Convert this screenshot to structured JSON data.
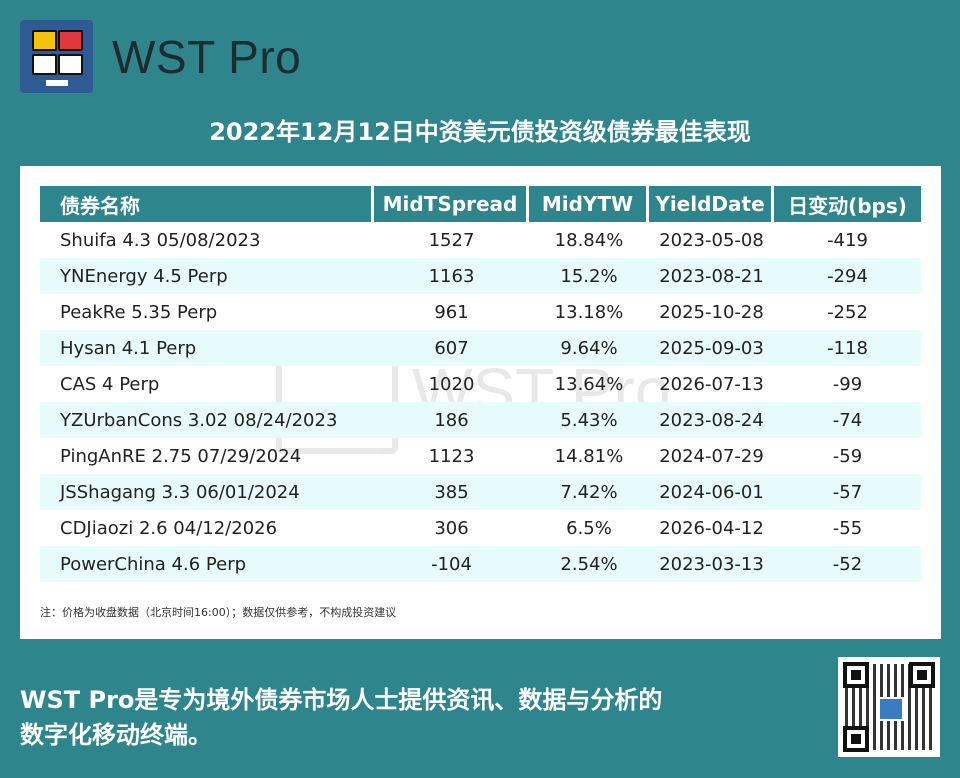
{
  "brand": {
    "name": "WST Pro",
    "logo_colors": [
      "#f4c20d",
      "#e0383e",
      "#ffffff",
      "#ffffff"
    ],
    "watermark": "WST Pro"
  },
  "headline": "2022年12月12日中资美元债投资级债券最佳表现",
  "table": {
    "headers": [
      "债券名称",
      "MidTSpread",
      "MidYTW",
      "YieldDate",
      "日变动(bps)"
    ],
    "rows": [
      [
        "Shuifa 4.3 05/08/2023",
        "1527",
        "18.84%",
        "2023-05-08",
        "-419"
      ],
      [
        "YNEnergy 4.5 Perp",
        "1163",
        "15.2%",
        "2023-08-21",
        "-294"
      ],
      [
        "PeakRe 5.35 Perp",
        "961",
        "13.18%",
        "2025-10-28",
        "-252"
      ],
      [
        "Hysan 4.1 Perp",
        "607",
        "9.64%",
        "2025-09-03",
        "-118"
      ],
      [
        "CAS 4 Perp",
        "1020",
        "13.64%",
        "2026-07-13",
        "-99"
      ],
      [
        "YZUrbanCons 3.02 08/24/2023",
        "186",
        "5.43%",
        "2023-08-24",
        "-74"
      ],
      [
        "PingAnRE 2.75 07/29/2024",
        "1123",
        "14.81%",
        "2024-07-29",
        "-59"
      ],
      [
        "JSShagang 3.3 06/01/2024",
        "385",
        "7.42%",
        "2024-06-01",
        "-57"
      ],
      [
        "CDJiaozi 2.6 04/12/2026",
        "306",
        "6.5%",
        "2026-04-12",
        "-55"
      ],
      [
        "PowerChina 4.6 Perp",
        "-104",
        "2.54%",
        "2023-03-13",
        "-52"
      ]
    ]
  },
  "note": "注：价格为收盘数据（北京时间16:00）；数据仅供参考，不构成投资建议",
  "footer": {
    "line1": "WST Pro是专为境外债券市场人士提供资讯、数据与分析的",
    "line2": "数字化移动终端。"
  },
  "colors": {
    "background": "#2e858c",
    "header_bg": "#2e858c",
    "alt_row": "#e7fafc",
    "logo_bg": "#2e5b94"
  }
}
